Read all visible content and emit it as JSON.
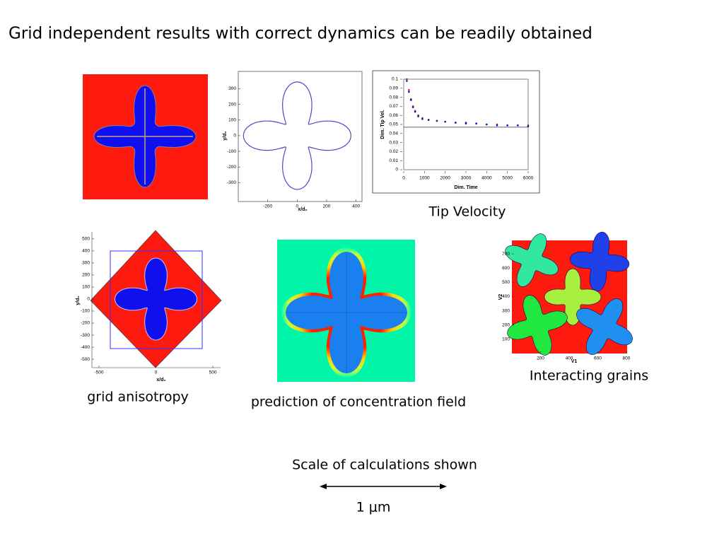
{
  "title": "Grid independent results with correct dynamics can be readily obtained",
  "figures": {
    "contour": {
      "xlabel": "x/d₀",
      "ylabel": "y/d₀",
      "xlim": [
        -400,
        440
      ],
      "ylim": [
        -420,
        410
      ],
      "xticks": [
        -200,
        0,
        200,
        400
      ],
      "yticks": [
        300,
        200,
        100,
        0,
        -100,
        -200,
        -300
      ]
    },
    "tip_velocity": {
      "caption": "Tip Velocity",
      "xlabel": "Dim. Time",
      "ylabel": "Dim. Tip Vel.",
      "xlim": [
        0,
        6000
      ],
      "ylim": [
        0,
        0.1
      ],
      "xticks": [
        0,
        1000,
        2000,
        3000,
        4000,
        5000,
        6000
      ],
      "yticks": [
        0,
        0.01,
        0.02,
        0.03,
        0.04,
        0.05,
        0.06,
        0.07,
        0.08,
        0.09,
        0.1
      ],
      "reference_line": 0.047,
      "x": [
        150,
        250,
        350,
        450,
        550,
        700,
        900,
        1200,
        1600,
        2000,
        2500,
        3000,
        3500,
        4000,
        4500,
        5000,
        5500,
        6000
      ],
      "series": [
        {
          "color": "#d01010",
          "values": [
            0.1,
            0.088,
            0.078,
            0.07,
            0.065,
            0.06,
            0.057,
            0.055,
            0.054,
            0.053,
            0.052,
            0.052,
            0.051,
            0.05,
            0.05,
            0.049,
            0.049,
            0.049
          ]
        },
        {
          "color": "#1010c0",
          "values": [
            0.098,
            0.086,
            0.077,
            0.069,
            0.064,
            0.059,
            0.056,
            0.055,
            0.054,
            0.053,
            0.052,
            0.051,
            0.051,
            0.05,
            0.049,
            0.049,
            0.049,
            0.048
          ]
        }
      ]
    },
    "grid_anisotropy": {
      "caption": "grid anisotropy",
      "xlabel": "x/d₀",
      "ylabel": "y/d₀",
      "xlim": [
        -562,
        568
      ],
      "ylim": [
        -570,
        558
      ],
      "xticks": [
        -500,
        0,
        500
      ],
      "yticks": [
        500,
        400,
        300,
        200,
        100,
        0,
        -100,
        -200,
        -300,
        -400,
        -500
      ]
    },
    "concentration": {
      "caption": "prediction of concentration field"
    },
    "grains": {
      "caption": "Interacting grains",
      "xlabel": "V1",
      "ylabel": "V2",
      "xlim": [
        0,
        805
      ],
      "ylim": [
        0,
        795
      ],
      "xticks": [
        200,
        400,
        600,
        800
      ],
      "yticks": [
        700,
        600,
        500,
        400,
        300,
        200,
        100
      ]
    }
  },
  "scale": {
    "caption": "Scale of calculations shown",
    "label": "1 μm"
  }
}
